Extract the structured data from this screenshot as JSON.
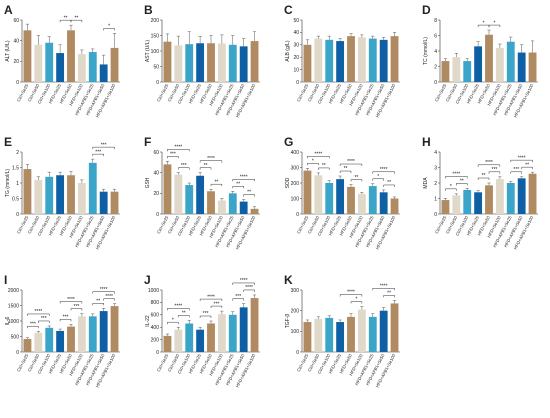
{
  "palette": {
    "brown": "#b08a61",
    "beige": "#e0d8c8",
    "teal": "#3aa5c8",
    "blue": "#0f5fa5",
    "text": "#222222"
  },
  "series_color_order": [
    "brown",
    "beige",
    "teal",
    "blue",
    "brown",
    "beige",
    "teal",
    "blue"
  ],
  "shared_categories": [
    "Ctrl+Se25",
    "Ctrl+Se50",
    "Ctrl+Se100",
    "HFD+Se25",
    "HFD+Se50",
    "HFD+Se100",
    "HFD+AFB1+Se25",
    "HFD+AFB1+Se50",
    "HFD+AFB1+Se100"
  ],
  "chart_data": [
    {
      "panel": "A",
      "type": "bar",
      "ylabel": "ALT (U/L)",
      "ylim": [
        0,
        60
      ],
      "yticks": [
        0,
        20,
        40,
        60
      ],
      "categories": [
        "Ctrl+Se25",
        "Ctrl+Se50",
        "Ctrl+Se100",
        "HFD+Se25",
        "HFD+Se50",
        "HFD+Se100",
        "HFD+AFB1+Se25",
        "HFD+AFB1+Se50",
        "HFD+AFB1+Se100"
      ],
      "values": [
        50,
        36,
        38,
        28,
        50,
        27,
        29,
        17,
        33
      ],
      "errors": [
        6,
        9,
        6,
        8,
        5,
        4,
        3,
        9,
        14
      ],
      "sig": [
        {
          "from": 3,
          "to": 4,
          "label": "**",
          "level": 0
        },
        {
          "from": 4,
          "to": 5,
          "label": "**",
          "level": 0
        },
        {
          "from": 7,
          "to": 8,
          "label": "*",
          "level": 0
        }
      ]
    },
    {
      "panel": "B",
      "type": "bar",
      "ylabel": "AST (U/L)",
      "ylim": [
        0,
        200
      ],
      "yticks": [
        0,
        50,
        100,
        150,
        200
      ],
      "categories": [
        "Ctrl+Se25",
        "Ctrl+Se50",
        "Ctrl+Se100",
        "HFD+Se25",
        "HFD+Se50",
        "HFD+Se100",
        "HFD+AFB1+Se25",
        "HFD+AFB1+Se50",
        "HFD+AFB1+Se100"
      ],
      "values": [
        130,
        118,
        122,
        125,
        125,
        124,
        120,
        115,
        132
      ],
      "errors": [
        25,
        30,
        40,
        22,
        25,
        28,
        30,
        25,
        30
      ],
      "sig": []
    },
    {
      "panel": "C",
      "type": "bar",
      "ylabel": "ALB (g/L)",
      "ylim": [
        0,
        50
      ],
      "yticks": [
        0,
        10,
        20,
        30,
        40,
        50
      ],
      "categories": [
        "Ctrl+Se25",
        "Ctrl+Se50",
        "Ctrl+Se100",
        "HFD+Se25",
        "HFD+Se50",
        "HFD+Se100",
        "HFD+AFB1+Se25",
        "HFD+AFB1+Se50",
        "HFD+AFB1+Se100"
      ],
      "values": [
        30,
        35,
        34,
        33,
        37,
        36,
        35,
        34,
        37
      ],
      "errors": [
        4,
        2,
        3,
        2,
        2,
        2,
        2,
        2,
        3
      ],
      "sig": []
    },
    {
      "panel": "D",
      "type": "bar",
      "ylabel": "TC (mmol/L)",
      "ylim": [
        0,
        8
      ],
      "yticks": [
        0,
        2,
        4,
        6,
        8
      ],
      "categories": [
        "Ctrl+Se25",
        "Ctrl+Se50",
        "Ctrl+Se100",
        "HFD+Se25",
        "HFD+Se50",
        "HFD+Se100",
        "HFD+AFB1+Se25",
        "HFD+AFB1+Se50",
        "HFD+AFB1+Se100"
      ],
      "values": [
        2.7,
        3.2,
        2.7,
        4.6,
        6.1,
        4.4,
        5.2,
        3.8,
        3.8
      ],
      "errors": [
        0.3,
        0.5,
        0.3,
        0.6,
        0.6,
        0.5,
        0.6,
        1.0,
        1.5
      ],
      "sig": [
        {
          "from": 3,
          "to": 4,
          "label": "*",
          "level": 0
        },
        {
          "from": 4,
          "to": 5,
          "label": "*",
          "level": 0
        }
      ]
    },
    {
      "panel": "E",
      "type": "bar",
      "ylabel": "TG (mmol/L)",
      "ylim": [
        0,
        2.0
      ],
      "yticks": [
        0,
        0.5,
        1.0,
        1.5,
        2.0
      ],
      "categories": [
        "Ctrl+Se25",
        "Ctrl+Se50",
        "Ctrl+Se100",
        "HFD+Se25",
        "HFD+Se50",
        "HFD+Se100",
        "HFD+AFB1+Se25",
        "HFD+AFB1+Se50",
        "HFD+AFB1+Se100"
      ],
      "values": [
        1.45,
        1.1,
        1.2,
        1.25,
        1.25,
        1.0,
        1.65,
        0.72,
        0.72
      ],
      "errors": [
        0.15,
        0.1,
        0.15,
        0.1,
        0.12,
        0.1,
        0.12,
        0.08,
        0.08
      ],
      "sig": [
        {
          "from": 6,
          "to": 7,
          "label": "***",
          "level": 0
        },
        {
          "from": 6,
          "to": 8,
          "label": "***",
          "level": 1
        }
      ]
    },
    {
      "panel": "F",
      "type": "bar",
      "ylabel": "GSH",
      "ylim": [
        0,
        60
      ],
      "yticks": [
        0,
        20,
        40,
        60
      ],
      "categories": [
        "Ctrl+Se25",
        "Ctrl+Se50",
        "Ctrl+Se100",
        "HFD+Se25",
        "HFD+Se50",
        "HFD+Se100",
        "HFD+AFB1+Se25",
        "HFD+AFB1+Se50",
        "HFD+AFB1+Se100"
      ],
      "values": [
        48,
        38,
        28,
        37,
        22,
        13,
        20,
        12,
        5
      ],
      "errors": [
        3,
        2,
        2,
        3,
        2,
        2,
        2,
        2,
        2
      ],
      "sig": [
        {
          "from": 0,
          "to": 1,
          "label": "***",
          "level": 0
        },
        {
          "from": 1,
          "to": 2,
          "label": "***",
          "level": 0
        },
        {
          "from": 0,
          "to": 2,
          "label": "****",
          "level": 1
        },
        {
          "from": 3,
          "to": 4,
          "label": "**",
          "level": 0
        },
        {
          "from": 4,
          "to": 5,
          "label": "**",
          "level": 0
        },
        {
          "from": 3,
          "to": 5,
          "label": "****",
          "level": 1
        },
        {
          "from": 6,
          "to": 7,
          "label": "**",
          "level": 0
        },
        {
          "from": 7,
          "to": 8,
          "label": "**",
          "level": 0
        },
        {
          "from": 6,
          "to": 8,
          "label": "****",
          "level": 1
        }
      ]
    },
    {
      "panel": "G",
      "type": "bar",
      "ylabel": "SOD",
      "ylim": [
        0,
        400
      ],
      "yticks": [
        0,
        100,
        200,
        300,
        400
      ],
      "categories": [
        "Ctrl+Se25",
        "Ctrl+Se50",
        "Ctrl+Se100",
        "HFD+Se25",
        "HFD+Se50",
        "HFD+Se100",
        "HFD+AFB1+Se25",
        "HFD+AFB1+Se50",
        "HFD+AFB1+Se100"
      ],
      "values": [
        280,
        250,
        200,
        225,
        175,
        130,
        180,
        140,
        100
      ],
      "errors": [
        15,
        15,
        15,
        20,
        15,
        10,
        15,
        15,
        10
      ],
      "sig": [
        {
          "from": 0,
          "to": 1,
          "label": "*",
          "level": 0
        },
        {
          "from": 1,
          "to": 2,
          "label": "**",
          "level": 0
        },
        {
          "from": 0,
          "to": 2,
          "label": "****",
          "level": 1
        },
        {
          "from": 3,
          "to": 4,
          "label": "**",
          "level": 0
        },
        {
          "from": 4,
          "to": 5,
          "label": "**",
          "level": 0
        },
        {
          "from": 3,
          "to": 5,
          "label": "****",
          "level": 1
        },
        {
          "from": 6,
          "to": 7,
          "label": "*",
          "level": 0
        },
        {
          "from": 7,
          "to": 8,
          "label": "**",
          "level": 0
        },
        {
          "from": 6,
          "to": 8,
          "label": "****",
          "level": 1
        }
      ]
    },
    {
      "panel": "H",
      "type": "bar",
      "ylabel": "MDA",
      "ylim": [
        0,
        4
      ],
      "yticks": [
        0,
        1,
        2,
        3,
        4
      ],
      "categories": [
        "Ctrl+Se25",
        "Ctrl+Se50",
        "Ctrl+Se100",
        "HFD+Se25",
        "HFD+Se50",
        "HFD+Se100",
        "HFD+AFB1+Se25",
        "HFD+AFB1+Se50",
        "HFD+AFB1+Se100"
      ],
      "values": [
        0.9,
        1.2,
        1.55,
        1.4,
        1.85,
        2.25,
        2.0,
        2.3,
        2.6
      ],
      "errors": [
        0.1,
        0.1,
        0.1,
        0.1,
        0.15,
        0.15,
        0.1,
        0.1,
        0.1
      ],
      "sig": [
        {
          "from": 0,
          "to": 1,
          "label": "*",
          "level": 0
        },
        {
          "from": 1,
          "to": 2,
          "label": "**",
          "level": 0
        },
        {
          "from": 0,
          "to": 2,
          "label": "****",
          "level": 1
        },
        {
          "from": 3,
          "to": 4,
          "label": "**",
          "level": 0
        },
        {
          "from": 4,
          "to": 5,
          "label": "***",
          "level": 0
        },
        {
          "from": 3,
          "to": 5,
          "label": "****",
          "level": 1
        },
        {
          "from": 6,
          "to": 7,
          "label": "***",
          "level": 0
        },
        {
          "from": 7,
          "to": 8,
          "label": "**",
          "level": 0
        },
        {
          "from": 6,
          "to": 8,
          "label": "****",
          "level": 1
        }
      ]
    },
    {
      "panel": "I",
      "type": "bar",
      "ylabel": "IL-6",
      "ylim": [
        0,
        2000
      ],
      "yticks": [
        0,
        500,
        1000,
        1500,
        2000
      ],
      "categories": [
        "Ctrl+Se25",
        "Ctrl+Se50",
        "Ctrl+Se100",
        "HFD+Se25",
        "HFD+Se50",
        "HFD+Se100",
        "HFD+AFB1+Se25",
        "HFD+AFB1+Se50",
        "HFD+AFB1+Se100"
      ],
      "values": [
        420,
        620,
        780,
        680,
        820,
        1150,
        1150,
        1320,
        1480
      ],
      "errors": [
        40,
        50,
        60,
        60,
        70,
        90,
        80,
        90,
        80
      ],
      "sig": [
        {
          "from": 0,
          "to": 1,
          "label": "***",
          "level": 0
        },
        {
          "from": 1,
          "to": 2,
          "label": "***",
          "level": 0
        },
        {
          "from": 0,
          "to": 2,
          "label": "****",
          "level": 1
        },
        {
          "from": 3,
          "to": 4,
          "label": "***",
          "level": 0
        },
        {
          "from": 4,
          "to": 5,
          "label": "***",
          "level": 0
        },
        {
          "from": 3,
          "to": 5,
          "label": "****",
          "level": 1
        },
        {
          "from": 6,
          "to": 7,
          "label": "**",
          "level": 0
        },
        {
          "from": 7,
          "to": 8,
          "label": "****",
          "level": 0
        },
        {
          "from": 6,
          "to": 8,
          "label": "****",
          "level": 1
        }
      ]
    },
    {
      "panel": "J",
      "type": "bar",
      "ylabel": "IL-22",
      "ylim": [
        0,
        1000
      ],
      "yticks": [
        0,
        200,
        400,
        600,
        800,
        1000
      ],
      "categories": [
        "Ctrl+Se25",
        "Ctrl+Se50",
        "Ctrl+Se100",
        "HFD+Se25",
        "HFD+Se50",
        "HFD+Se100",
        "HFD+AFB1+Se25",
        "HFD+AFB1+Se50",
        "HFD+AFB1+Se100"
      ],
      "values": [
        260,
        360,
        460,
        360,
        460,
        610,
        600,
        720,
        870
      ],
      "errors": [
        30,
        40,
        50,
        40,
        40,
        50,
        50,
        60,
        50
      ],
      "sig": [
        {
          "from": 0,
          "to": 1,
          "label": "*",
          "level": 0
        },
        {
          "from": 1,
          "to": 2,
          "label": "**",
          "level": 0
        },
        {
          "from": 0,
          "to": 2,
          "label": "****",
          "level": 1
        },
        {
          "from": 3,
          "to": 4,
          "label": "***",
          "level": 0
        },
        {
          "from": 4,
          "to": 5,
          "label": "***",
          "level": 0
        },
        {
          "from": 3,
          "to": 5,
          "label": "****",
          "level": 1
        },
        {
          "from": 6,
          "to": 7,
          "label": "***",
          "level": 0
        },
        {
          "from": 7,
          "to": 8,
          "label": "****",
          "level": 0
        },
        {
          "from": 6,
          "to": 8,
          "label": "****",
          "level": 1
        }
      ]
    },
    {
      "panel": "K",
      "type": "bar",
      "ylabel": "TGF-β",
      "ylim": [
        0,
        300
      ],
      "yticks": [
        0,
        100,
        200,
        300
      ],
      "categories": [
        "Ctrl+Se25",
        "Ctrl+Se50",
        "Ctrl+Se100",
        "HFD+Se25",
        "HFD+Se50",
        "HFD+Se100",
        "HFD+AFB1+Se25",
        "HFD+AFB1+Se50",
        "HFD+AFB1+Se100"
      ],
      "values": [
        145,
        160,
        165,
        145,
        170,
        205,
        170,
        200,
        235
      ],
      "errors": [
        10,
        10,
        10,
        10,
        15,
        15,
        15,
        15,
        15
      ],
      "sig": [
        {
          "from": 4,
          "to": 5,
          "label": "*",
          "level": 0
        },
        {
          "from": 3,
          "to": 5,
          "label": "****",
          "level": 1
        },
        {
          "from": 7,
          "to": 8,
          "label": "**",
          "level": 0
        },
        {
          "from": 6,
          "to": 8,
          "label": "****",
          "level": 1
        }
      ]
    }
  ]
}
